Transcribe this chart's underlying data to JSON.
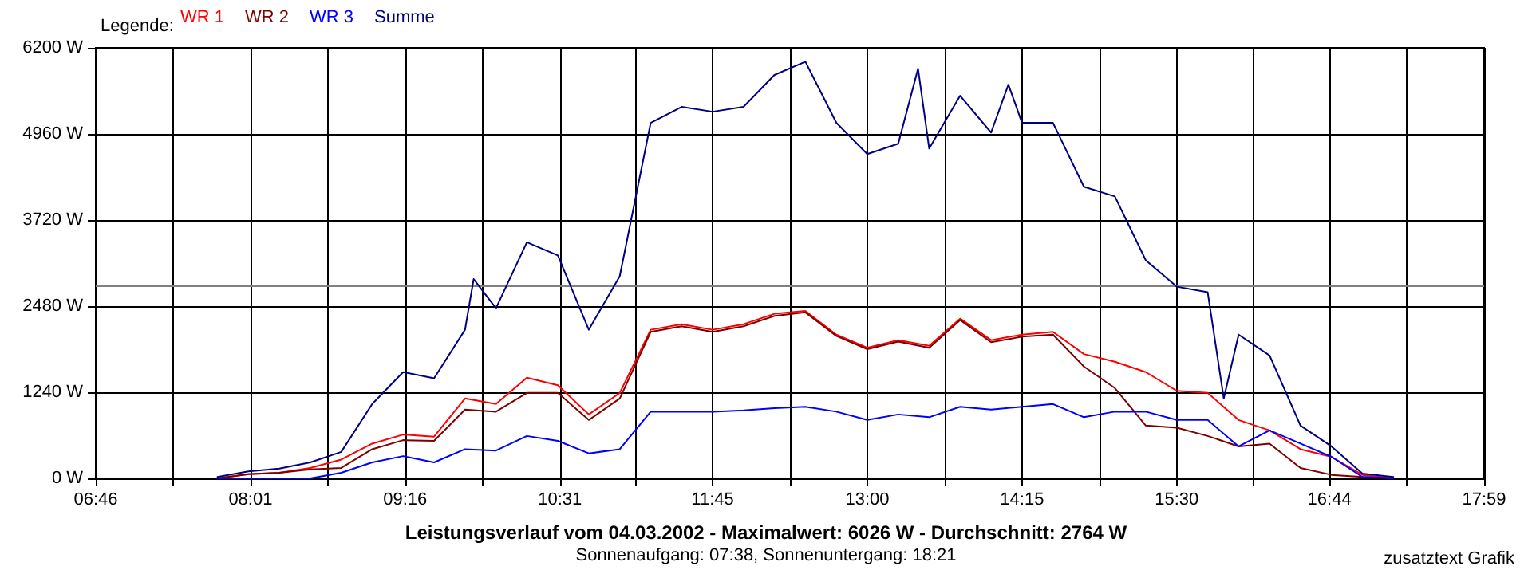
{
  "chart_data": {
    "type": "line",
    "title": "Leistungsverlauf vom 04.03.2002 - Maximalwert: 6026 W - Durchschnitt: 2764 W",
    "subtitle": "Sonnenaufgang: 07:38, Sonnenuntergang: 18:21",
    "legend_title": "Legende:",
    "annotations": [
      "zusatztext Grafik"
    ],
    "x": [
      7.75,
      8.0,
      8.25,
      8.5,
      8.75,
      9.0,
      9.25,
      9.5,
      9.75,
      10.0,
      10.25,
      10.5,
      10.75,
      11.0,
      11.25,
      11.5,
      11.75,
      12.0,
      12.25,
      12.5,
      12.75,
      13.0,
      13.25,
      13.5,
      13.75,
      14.0,
      14.25,
      14.5,
      14.75,
      15.0,
      15.25,
      15.5,
      15.75,
      16.0,
      16.25,
      16.5,
      16.75,
      17.0,
      17.25
    ],
    "series": [
      {
        "name": "WR 1",
        "color": "#ff0000",
        "values": [
          0,
          60,
          80,
          150,
          270,
          500,
          630,
          600,
          1150,
          1070,
          1450,
          1340,
          920,
          1230,
          2140,
          2220,
          2140,
          2220,
          2370,
          2410,
          2070,
          1880,
          1990,
          1910,
          2300,
          1990,
          2070,
          2110,
          1790,
          1680,
          1530,
          1260,
          1230,
          840,
          690,
          420,
          310,
          50,
          0
        ]
      },
      {
        "name": "WR 2",
        "color": "#800000",
        "values": [
          0,
          60,
          80,
          130,
          150,
          420,
          550,
          540,
          990,
          960,
          1230,
          1230,
          840,
          1150,
          2110,
          2190,
          2110,
          2190,
          2340,
          2390,
          2050,
          1860,
          1970,
          1880,
          2280,
          1960,
          2040,
          2070,
          1610,
          1300,
          760,
          730,
          610,
          460,
          500,
          150,
          50,
          20,
          0
        ]
      },
      {
        "name": "WR 3",
        "color": "#0000ff",
        "values": [
          0,
          0,
          0,
          0,
          80,
          230,
          320,
          230,
          420,
          400,
          610,
          540,
          360,
          420,
          960,
          960,
          960,
          980,
          1010,
          1030,
          960,
          840,
          920,
          880,
          1030,
          990,
          1030,
          1070,
          880,
          960,
          960,
          840,
          840,
          460,
          690,
          500,
          310,
          20,
          0
        ]
      },
      {
        "name": "Summe",
        "color": "#000080",
        "x": [
          7.75,
          8.0,
          8.25,
          8.5,
          8.75,
          9.0,
          9.25,
          9.5,
          9.75,
          9.82,
          10.0,
          10.25,
          10.5,
          10.75,
          11.0,
          11.25,
          11.5,
          11.75,
          12.0,
          12.25,
          12.5,
          12.75,
          13.0,
          13.25,
          13.41,
          13.5,
          13.75,
          14.0,
          14.14,
          14.25,
          14.5,
          14.75,
          15.0,
          15.25,
          15.5,
          15.75,
          15.88,
          16.0,
          16.25,
          16.5,
          16.75,
          17.0,
          17.25
        ],
        "values": [
          20,
          100,
          140,
          230,
          380,
          1070,
          1530,
          1440,
          2140,
          2870,
          2450,
          3400,
          3210,
          2140,
          2910,
          5120,
          5350,
          5280,
          5350,
          5810,
          6000,
          5120,
          4670,
          4820,
          5900,
          4750,
          5510,
          4980,
          5670,
          5120,
          5120,
          4200,
          4060,
          3140,
          2760,
          2680,
          1150,
          2070,
          1770,
          760,
          460,
          70,
          20
        ]
      }
    ],
    "xlim": [
      6.7667,
      17.9833
    ],
    "xticks": [
      {
        "value": 6.7667,
        "label": "06:46"
      },
      {
        "value": 7.3917,
        "label": null
      },
      {
        "value": 8.0167,
        "label": "08:01"
      },
      {
        "value": 8.6417,
        "label": null
      },
      {
        "value": 9.2667,
        "label": "09:16"
      },
      {
        "value": 9.8917,
        "label": null
      },
      {
        "value": 10.5167,
        "label": "10:31"
      },
      {
        "value": 11.1333,
        "label": null
      },
      {
        "value": 11.75,
        "label": "11:45"
      },
      {
        "value": 12.375,
        "label": null
      },
      {
        "value": 13,
        "label": "13:00"
      },
      {
        "value": 13.625,
        "label": null
      },
      {
        "value": 14.25,
        "label": "14:15"
      },
      {
        "value": 14.875,
        "label": null
      },
      {
        "value": 15.5,
        "label": "15:30"
      },
      {
        "value": 16.1167,
        "label": null
      },
      {
        "value": 16.7333,
        "label": "16:44"
      },
      {
        "value": 17.3583,
        "label": null
      },
      {
        "value": 17.9833,
        "label": "17:59"
      }
    ],
    "ylim": [
      0,
      6200
    ],
    "yticks": [
      {
        "value": 0,
        "label": "0 W"
      },
      {
        "value": 1240,
        "label": "1240 W"
      },
      {
        "value": 2480,
        "label": "2480 W"
      },
      {
        "value": 3720,
        "label": "3720 W"
      },
      {
        "value": 4960,
        "label": "4960 W"
      },
      {
        "value": 6200,
        "label": "6200 W"
      }
    ],
    "ref_lines": [
      {
        "axis": "y",
        "value": 2764,
        "color": "#808080"
      }
    ],
    "grid": true,
    "legend": "top left",
    "marker": "none",
    "line_style": "solid"
  }
}
